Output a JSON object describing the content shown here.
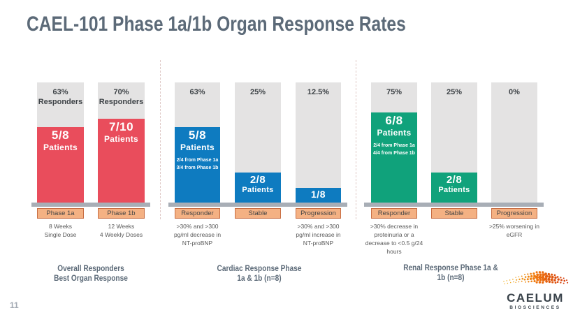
{
  "title": "CAEL-101 Phase 1a/1b Organ Response Rates",
  "page_number": "11",
  "logo": {
    "name": "CAELUM",
    "sub": "BIOSCIENCES"
  },
  "colors": {
    "red_bar": "#E94D5C",
    "blue_bar": "#0E7BC0",
    "green_bar": "#10A27B",
    "track_gray": "#E4E3E3",
    "baseline_gray": "#A8AEB6",
    "axis_label_fill": "#F4B183",
    "axis_label_border": "#C86E44",
    "heading_text": "#5C6A78",
    "footnote_text": "#595959",
    "logo_orange": "#ED7D31",
    "logo_text": "#39424A"
  },
  "groups": [
    {
      "caption_line1": "Overall Responders",
      "caption_line2": "Best Organ Response",
      "bars": [
        {
          "pct_label": "63%",
          "pct_sub": "Responders",
          "fill_pct": 63,
          "big": "5/8",
          "word": "Patients",
          "axis_label": "Phase 1a",
          "note": "8 Weeks\nSingle Dose"
        },
        {
          "pct_label": "70%",
          "pct_sub": "Responders",
          "fill_pct": 70,
          "big": "7/10",
          "word": "Patients",
          "axis_label": "Phase 1b",
          "note": "12 Weeks\n4 Weekly Doses"
        }
      ]
    },
    {
      "caption_line1": "Cardiac Response Phase",
      "caption_line2": "1a & 1b (n=8)",
      "bars": [
        {
          "pct_label": "63%",
          "fill_pct": 63,
          "big": "5/8",
          "word": "Patients",
          "detail1": "2/4 from Phase 1a",
          "detail2": "3/4 from Phase 1b",
          "axis_label": "Responder",
          "note": ">30% and >300\npg/ml decrease in\nNT-proBNP"
        },
        {
          "pct_label": "25%",
          "fill_pct": 25,
          "big": "2/8",
          "word": "Patients",
          "axis_label": "Stable",
          "note": ""
        },
        {
          "pct_label": "12.5%",
          "fill_pct": 12.5,
          "big": "1/8",
          "word": "",
          "axis_label": "Progression",
          "note": ">30% and >300\npg/ml increase in\nNT-proBNP"
        }
      ]
    },
    {
      "caption_line1": "Renal Response Phase 1a &",
      "caption_line2": "1b (n=8)",
      "bars": [
        {
          "pct_label": "75%",
          "fill_pct": 75,
          "big": "6/8",
          "word": "Patients",
          "detail1": "2/4 from Phase 1a",
          "detail2": "4/4 from  Phase 1b",
          "axis_label": "Responder",
          "note": ">30%  decrease in\nproteinuria  or a\ndecrease to <0.5 g/24\nhours"
        },
        {
          "pct_label": "25%",
          "fill_pct": 25,
          "big": "2/8",
          "word": "Patients",
          "axis_label": "Stable",
          "note": ""
        },
        {
          "pct_label": "0%",
          "fill_pct": 0,
          "big": "",
          "word": "",
          "axis_label": "Progression",
          "note": ">25% worsening in\neGFR"
        }
      ]
    }
  ],
  "chart_data": [
    {
      "type": "bar",
      "title": "Overall Responders Best Organ Response",
      "categories": [
        "Phase 1a",
        "Phase 1b"
      ],
      "values": [
        63,
        70
      ],
      "value_unit": "percent responders",
      "bar_labels": [
        "5/8 Patients",
        "7/10 Patients"
      ],
      "category_notes": [
        "8 Weeks Single Dose",
        "12 Weeks 4 Weekly Doses"
      ],
      "ylim": [
        0,
        100
      ],
      "grid": false,
      "bar_color": "#E94D5C"
    },
    {
      "type": "bar",
      "title": "Cardiac Response Phase 1a & 1b (n=8)",
      "categories": [
        "Responder",
        "Stable",
        "Progression"
      ],
      "values": [
        63,
        25,
        12.5
      ],
      "value_unit": "percent of patients",
      "bar_labels": [
        "5/8 Patients (2/4 from Phase 1a, 3/4 from Phase 1b)",
        "2/8 Patients",
        "1/8"
      ],
      "category_notes": [
        ">30% and >300 pg/ml decrease in NT-proBNP",
        "",
        ">30% and >300 pg/ml increase in NT-proBNP"
      ],
      "ylim": [
        0,
        100
      ],
      "grid": false,
      "bar_color": "#0E7BC0"
    },
    {
      "type": "bar",
      "title": "Renal Response Phase 1a & 1b (n=8)",
      "categories": [
        "Responder",
        "Stable",
        "Progression"
      ],
      "values": [
        75,
        25,
        0
      ],
      "value_unit": "percent of patients",
      "bar_labels": [
        "6/8 Patients (2/4 from Phase 1a, 4/4 from Phase 1b)",
        "2/8 Patients",
        ""
      ],
      "category_notes": [
        ">30% decrease in proteinuria or a decrease to <0.5 g/24 hours",
        "",
        ">25% worsening in eGFR"
      ],
      "ylim": [
        0,
        100
      ],
      "grid": false,
      "bar_color": "#10A27B"
    }
  ]
}
